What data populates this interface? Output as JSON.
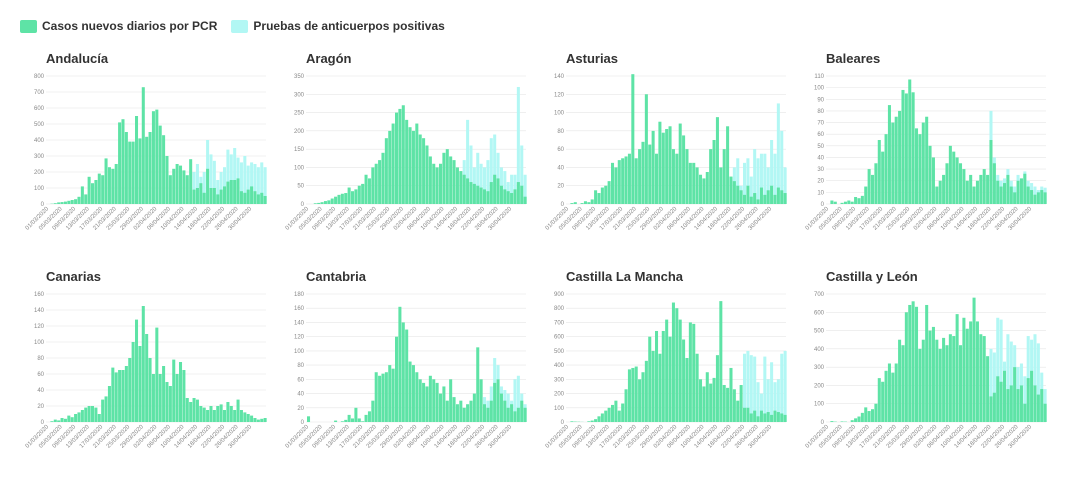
{
  "colors": {
    "pcr": "#5ee3a6",
    "antibody": "#b2f7f4",
    "grid": "#e6e6e6",
    "tick": "#888888",
    "title": "#333333"
  },
  "legend": {
    "pcr_label": "Casos nuevos diarios por PCR",
    "antibody_label": "Pruebas de anticuerpos positivas"
  },
  "chart_data": [
    {
      "type": "bar",
      "title": "Andalucía",
      "ylim": [
        0,
        800
      ],
      "yticks": [
        0,
        100,
        200,
        300,
        400,
        500,
        600,
        700,
        800
      ],
      "pcr": [
        0,
        2,
        5,
        10,
        12,
        15,
        20,
        25,
        30,
        45,
        110,
        60,
        170,
        130,
        150,
        190,
        180,
        285,
        230,
        220,
        250,
        510,
        530,
        450,
        390,
        390,
        550,
        410,
        730,
        420,
        450,
        580,
        590,
        490,
        430,
        300,
        180,
        220,
        250,
        240,
        210,
        180,
        280,
        90,
        100,
        130,
        70,
        220,
        100,
        100,
        60,
        90,
        110,
        140,
        150,
        150,
        160,
        80,
        70,
        90,
        110,
        80,
        60,
        70,
        50
      ],
      "antibody": [
        0,
        0,
        0,
        0,
        0,
        0,
        0,
        0,
        0,
        0,
        0,
        0,
        0,
        0,
        0,
        0,
        0,
        0,
        0,
        0,
        0,
        0,
        0,
        0,
        0,
        0,
        0,
        0,
        0,
        0,
        0,
        0,
        0,
        0,
        0,
        0,
        0,
        0,
        0,
        0,
        0,
        0,
        0,
        200,
        250,
        170,
        200,
        400,
        310,
        270,
        150,
        200,
        230,
        340,
        310,
        350,
        290,
        260,
        300,
        240,
        260,
        250,
        230,
        260,
        230
      ],
      "xticks": [
        "01/03/2020",
        "05/03/2020",
        "09/03/2020",
        "13/03/2020",
        "17/03/2020",
        "21/03/2020",
        "25/03/2020",
        "29/03/2020",
        "02/04/2020",
        "06/04/2020",
        "10/04/2020",
        "14/04/2020",
        "18/04/2020",
        "22/04/2020",
        "26/04/2020",
        "30/04/2020"
      ]
    },
    {
      "type": "bar",
      "title": "Aragón",
      "ylim": [
        0,
        350
      ],
      "yticks": [
        0,
        50,
        100,
        150,
        200,
        250,
        300,
        350
      ],
      "pcr": [
        0,
        0,
        2,
        3,
        5,
        8,
        10,
        15,
        20,
        25,
        28,
        30,
        45,
        35,
        40,
        50,
        55,
        80,
        70,
        100,
        110,
        120,
        140,
        180,
        200,
        220,
        250,
        260,
        270,
        230,
        210,
        200,
        220,
        190,
        180,
        160,
        130,
        110,
        100,
        110,
        140,
        150,
        130,
        120,
        100,
        90,
        80,
        70,
        60,
        55,
        50,
        45,
        40,
        35,
        60,
        80,
        70,
        50,
        40,
        35,
        30,
        40,
        60,
        50,
        20
      ],
      "antibody": [
        0,
        0,
        0,
        0,
        0,
        0,
        0,
        0,
        0,
        0,
        0,
        0,
        0,
        0,
        0,
        0,
        0,
        0,
        0,
        0,
        0,
        0,
        0,
        0,
        0,
        0,
        0,
        0,
        0,
        0,
        0,
        0,
        0,
        0,
        0,
        0,
        0,
        0,
        0,
        0,
        0,
        0,
        0,
        0,
        0,
        0,
        120,
        230,
        160,
        100,
        140,
        110,
        100,
        120,
        180,
        190,
        140,
        100,
        90,
        60,
        80,
        80,
        320,
        160,
        80
      ],
      "xticks": [
        "01/03/2020",
        "05/03/2020",
        "09/03/2020",
        "13/03/2020",
        "17/03/2020",
        "21/03/2020",
        "25/03/2020",
        "29/03/2020",
        "02/04/2020",
        "06/04/2020",
        "10/04/2020",
        "14/04/2020",
        "18/04/2020",
        "22/04/2020",
        "26/04/2020",
        "30/04/2020"
      ]
    },
    {
      "type": "bar",
      "title": "Asturias",
      "ylim": [
        0,
        140
      ],
      "yticks": [
        0,
        20,
        40,
        60,
        80,
        100,
        120,
        140
      ],
      "pcr": [
        0,
        1,
        2,
        0,
        1,
        3,
        2,
        5,
        15,
        12,
        18,
        20,
        25,
        45,
        40,
        48,
        50,
        52,
        55,
        142,
        50,
        60,
        68,
        120,
        65,
        80,
        55,
        90,
        78,
        82,
        85,
        60,
        55,
        88,
        75,
        60,
        45,
        45,
        40,
        32,
        28,
        35,
        60,
        70,
        95,
        40,
        60,
        85,
        30,
        25,
        20,
        15,
        10,
        20,
        8,
        12,
        5,
        18,
        10,
        15,
        20,
        10,
        18,
        15,
        12
      ],
      "antibody": [
        0,
        0,
        0,
        0,
        0,
        0,
        0,
        0,
        0,
        0,
        0,
        0,
        0,
        0,
        0,
        0,
        0,
        0,
        0,
        0,
        0,
        0,
        0,
        0,
        0,
        0,
        0,
        0,
        0,
        0,
        0,
        0,
        0,
        0,
        0,
        0,
        0,
        0,
        0,
        0,
        0,
        0,
        0,
        0,
        0,
        0,
        0,
        0,
        0,
        40,
        50,
        20,
        45,
        50,
        30,
        60,
        50,
        55,
        55,
        40,
        70,
        55,
        110,
        80,
        40
      ],
      "xticks": [
        "01/03/2020",
        "05/03/2020",
        "09/03/2020",
        "13/03/2020",
        "17/03/2020",
        "21/03/2020",
        "25/03/2020",
        "29/03/2020",
        "02/04/2020",
        "06/04/2020",
        "10/04/2020",
        "14/04/2020",
        "18/04/2020",
        "22/04/2020",
        "26/04/2020",
        "30/04/2020"
      ]
    },
    {
      "type": "bar",
      "title": "Baleares",
      "ylim": [
        0,
        110
      ],
      "yticks": [
        0,
        10,
        20,
        30,
        40,
        50,
        60,
        70,
        80,
        90,
        100,
        110
      ],
      "pcr": [
        0,
        3,
        2,
        0,
        1,
        2,
        3,
        2,
        6,
        5,
        7,
        15,
        30,
        25,
        35,
        55,
        45,
        60,
        85,
        70,
        75,
        80,
        98,
        95,
        107,
        96,
        65,
        60,
        70,
        75,
        50,
        40,
        15,
        20,
        25,
        35,
        50,
        45,
        40,
        35,
        30,
        20,
        25,
        15,
        20,
        25,
        30,
        25,
        55,
        35,
        20,
        15,
        18,
        25,
        15,
        10,
        20,
        22,
        26,
        15,
        12,
        8,
        10,
        12,
        10
      ],
      "antibody": [
        0,
        0,
        0,
        0,
        0,
        0,
        0,
        0,
        0,
        0,
        0,
        0,
        0,
        0,
        0,
        0,
        0,
        0,
        0,
        0,
        0,
        0,
        0,
        0,
        0,
        0,
        0,
        0,
        0,
        0,
        0,
        0,
        0,
        0,
        0,
        0,
        0,
        0,
        0,
        0,
        0,
        0,
        0,
        0,
        0,
        0,
        0,
        0,
        80,
        40,
        25,
        20,
        22,
        30,
        20,
        15,
        25,
        22,
        28,
        20,
        18,
        15,
        12,
        15,
        14
      ],
      "xticks": [
        "01/03/2020",
        "05/03/2020",
        "09/03/2020",
        "13/03/2020",
        "17/03/2020",
        "21/03/2020",
        "25/03/2020",
        "29/03/2020",
        "02/04/2020",
        "06/04/2020",
        "10/04/2020",
        "14/04/2020",
        "18/04/2020",
        "22/04/2020",
        "26/04/2020",
        "30/04/2020"
      ]
    },
    {
      "type": "bar",
      "title": "Canarias",
      "ylim": [
        0,
        160
      ],
      "yticks": [
        0,
        20,
        40,
        60,
        80,
        100,
        120,
        140,
        160
      ],
      "pcr": [
        0,
        1,
        3,
        2,
        5,
        4,
        8,
        6,
        10,
        12,
        15,
        18,
        20,
        20,
        18,
        10,
        28,
        32,
        45,
        68,
        62,
        65,
        65,
        70,
        80,
        100,
        128,
        95,
        145,
        110,
        80,
        60,
        118,
        60,
        70,
        50,
        45,
        78,
        60,
        75,
        65,
        30,
        25,
        30,
        28,
        20,
        18,
        15,
        20,
        15,
        20,
        22,
        15,
        25,
        20,
        15,
        28,
        15,
        12,
        10,
        8,
        5,
        3,
        4,
        5
      ],
      "antibody": [],
      "xticks": [
        "01/03/2020",
        "05/03/2020",
        "09/03/2020",
        "13/03/2020",
        "17/03/2020",
        "21/03/2020",
        "25/03/2020",
        "29/03/2020",
        "02/04/2020",
        "06/04/2020",
        "10/04/2020",
        "14/04/2020",
        "18/04/2020",
        "22/04/2020",
        "26/04/2020",
        "30/04/2020"
      ]
    },
    {
      "type": "bar",
      "title": "Cantabria",
      "ylim": [
        0,
        180
      ],
      "yticks": [
        0,
        20,
        40,
        60,
        80,
        100,
        120,
        140,
        160,
        180
      ],
      "pcr": [
        8,
        0,
        0,
        0,
        0,
        0,
        0,
        0,
        2,
        0,
        1,
        3,
        10,
        5,
        20,
        5,
        1,
        10,
        15,
        30,
        70,
        65,
        68,
        70,
        80,
        75,
        120,
        162,
        140,
        130,
        85,
        80,
        70,
        60,
        55,
        50,
        65,
        60,
        55,
        40,
        50,
        30,
        60,
        35,
        25,
        30,
        20,
        25,
        30,
        40,
        105,
        60,
        25,
        20,
        30,
        55,
        60,
        40,
        30,
        20,
        25,
        15,
        20,
        30,
        20
      ],
      "antibody": [
        0,
        0,
        0,
        0,
        0,
        0,
        0,
        0,
        0,
        0,
        0,
        0,
        0,
        0,
        0,
        0,
        0,
        0,
        0,
        0,
        0,
        0,
        0,
        0,
        0,
        0,
        0,
        0,
        0,
        0,
        0,
        0,
        0,
        0,
        0,
        0,
        0,
        0,
        0,
        0,
        0,
        0,
        0,
        0,
        0,
        0,
        0,
        0,
        0,
        0,
        0,
        0,
        35,
        30,
        50,
        90,
        80,
        50,
        45,
        40,
        30,
        60,
        65,
        40,
        25
      ],
      "xticks": [
        "01/03/2020",
        "05/03/2020",
        "09/03/2020",
        "13/03/2020",
        "17/03/2020",
        "21/03/2020",
        "25/03/2020",
        "29/03/2020",
        "02/04/2020",
        "06/04/2020",
        "10/04/2020",
        "14/04/2020",
        "18/04/2020",
        "22/04/2020",
        "26/04/2020",
        "30/04/2020"
      ]
    },
    {
      "type": "bar",
      "title": "Castilla La Mancha",
      "ylim": [
        0,
        900
      ],
      "yticks": [
        0,
        100,
        200,
        300,
        400,
        500,
        600,
        700,
        800,
        900
      ],
      "pcr": [
        0,
        5,
        3,
        2,
        1,
        0,
        5,
        10,
        20,
        40,
        60,
        80,
        100,
        120,
        150,
        80,
        130,
        230,
        370,
        380,
        390,
        300,
        350,
        430,
        600,
        500,
        640,
        480,
        640,
        720,
        600,
        840,
        800,
        720,
        580,
        450,
        700,
        690,
        480,
        300,
        250,
        350,
        270,
        310,
        470,
        850,
        260,
        240,
        380,
        230,
        150,
        260,
        100,
        100,
        60,
        80,
        40,
        80,
        60,
        70,
        50,
        80,
        70,
        60,
        50
      ],
      "antibody": [
        0,
        0,
        0,
        0,
        0,
        0,
        0,
        0,
        0,
        0,
        0,
        0,
        0,
        0,
        0,
        0,
        0,
        0,
        0,
        0,
        0,
        0,
        0,
        0,
        0,
        0,
        0,
        0,
        0,
        0,
        0,
        0,
        0,
        0,
        0,
        0,
        0,
        0,
        0,
        0,
        0,
        0,
        0,
        0,
        0,
        0,
        0,
        0,
        0,
        0,
        0,
        0,
        480,
        500,
        470,
        460,
        280,
        200,
        460,
        300,
        420,
        280,
        300,
        480,
        500
      ],
      "xticks": [
        "01/03/2020",
        "05/03/2020",
        "09/03/2020",
        "13/03/2020",
        "17/03/2020",
        "21/03/2020",
        "25/03/2020",
        "29/03/2020",
        "02/04/2020",
        "06/04/2020",
        "10/04/2020",
        "14/04/2020",
        "18/04/2020",
        "22/04/2020",
        "26/04/2020",
        "30/04/2020"
      ]
    },
    {
      "type": "bar",
      "title": "Castilla y León",
      "ylim": [
        0,
        700
      ],
      "yticks": [
        0,
        100,
        200,
        300,
        400,
        500,
        600,
        700
      ],
      "pcr": [
        0,
        5,
        2,
        0,
        3,
        2,
        0,
        10,
        20,
        30,
        50,
        80,
        60,
        70,
        100,
        240,
        220,
        280,
        320,
        270,
        320,
        450,
        420,
        600,
        640,
        660,
        630,
        400,
        450,
        640,
        500,
        520,
        450,
        400,
        460,
        420,
        480,
        470,
        590,
        420,
        570,
        510,
        550,
        680,
        550,
        480,
        470,
        360,
        140,
        160,
        250,
        220,
        280,
        180,
        200,
        300,
        180,
        200,
        100,
        240,
        280,
        200,
        150,
        180,
        100
      ],
      "antibody": [
        0,
        0,
        0,
        0,
        0,
        0,
        0,
        0,
        0,
        0,
        0,
        0,
        0,
        0,
        0,
        0,
        0,
        0,
        0,
        0,
        0,
        0,
        0,
        0,
        0,
        0,
        0,
        0,
        0,
        0,
        0,
        0,
        0,
        0,
        0,
        0,
        0,
        0,
        0,
        0,
        0,
        0,
        0,
        0,
        0,
        0,
        0,
        0,
        400,
        380,
        570,
        560,
        330,
        480,
        440,
        420,
        300,
        320,
        250,
        470,
        450,
        480,
        430,
        270,
        180
      ],
      "xticks": [
        "01/03/2020",
        "05/03/2020",
        "09/03/2020",
        "13/03/2020",
        "17/03/2020",
        "21/03/2020",
        "25/03/2020",
        "29/03/2020",
        "02/04/2020",
        "06/04/2020",
        "10/04/2020",
        "14/04/2020",
        "18/04/2020",
        "22/04/2020",
        "26/04/2020",
        "30/04/2020"
      ]
    }
  ]
}
